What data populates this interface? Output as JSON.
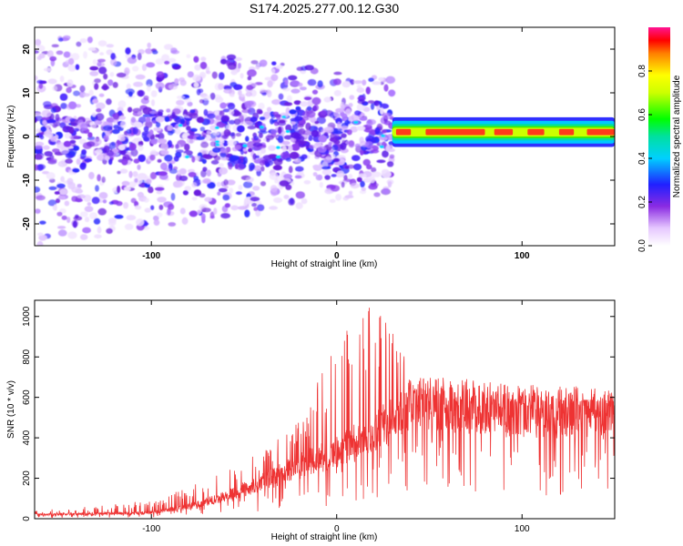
{
  "title": "S174.2025.277.00.12.G30",
  "chart_data": [
    {
      "type": "heatmap",
      "xlabel": "Height of straight line (km)",
      "ylabel": "Frequency (Hz)",
      "xlim": [
        -163,
        150
      ],
      "ylim": [
        -25,
        25
      ],
      "xticks": [
        -100,
        0,
        100
      ],
      "yticks": [
        -20,
        -10,
        0,
        10,
        20
      ],
      "colorbar": {
        "label": "Normalized spectral amplitude",
        "range": [
          0,
          1
        ],
        "ticks": [
          "0.0",
          "0.2",
          "0.4",
          "0.6",
          "0.8"
        ]
      },
      "features": [
        {
          "name": "scattered noise",
          "x_range": [
            -163,
            30
          ],
          "freq_range": [
            -25,
            25
          ],
          "amplitude": [
            0.05,
            0.3
          ]
        },
        {
          "name": "narrow band",
          "x_range": [
            30,
            150
          ],
          "freq_center": 1,
          "amplitude": [
            0.6,
            1.0
          ]
        }
      ]
    },
    {
      "type": "line",
      "xlabel": "Height of straight line (km)",
      "ylabel": "SNR (10 * v/v)",
      "xlim": [
        -163,
        150
      ],
      "ylim": [
        0,
        1080
      ],
      "xticks": [
        -100,
        0,
        100
      ],
      "yticks": [
        0,
        200,
        400,
        600,
        800,
        1000
      ],
      "color": "#ee3333",
      "envelope": [
        {
          "x": -163,
          "base": 20,
          "spike": 40
        },
        {
          "x": -100,
          "base": 30,
          "spike": 90
        },
        {
          "x": -80,
          "base": 60,
          "spike": 160
        },
        {
          "x": -60,
          "base": 110,
          "spike": 230
        },
        {
          "x": -40,
          "base": 180,
          "spike": 340
        },
        {
          "x": -20,
          "base": 260,
          "spike": 500
        },
        {
          "x": 0,
          "base": 330,
          "spike": 880
        },
        {
          "x": 20,
          "base": 420,
          "spike": 1080
        },
        {
          "x": 30,
          "base": 490,
          "spike": 1000
        },
        {
          "x": 40,
          "base": 560,
          "spike": 700
        },
        {
          "x": 60,
          "base": 560,
          "spike": 650
        },
        {
          "x": 100,
          "base": 530,
          "spike": 620
        },
        {
          "x": 150,
          "base": 520,
          "spike": 600
        }
      ]
    }
  ]
}
